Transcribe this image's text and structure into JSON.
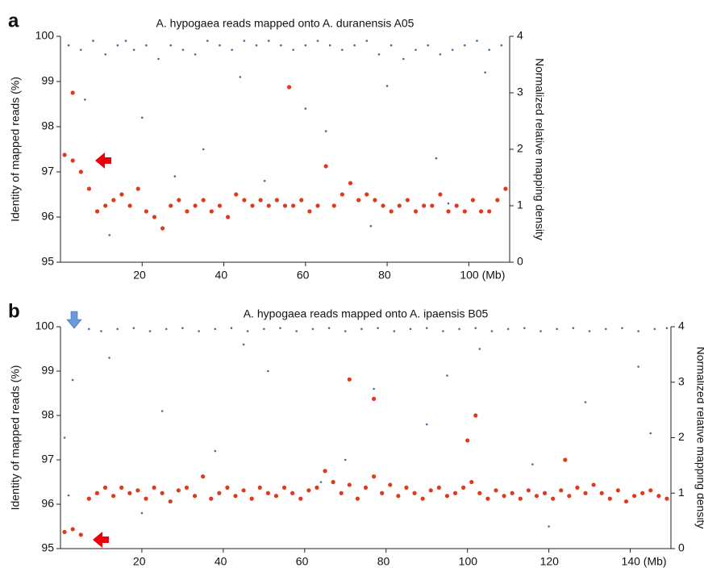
{
  "chart_data": [
    {
      "type": "scatter",
      "panel": "a",
      "title": "A. hypogaea reads mapped onto A. duranensis A05",
      "y_label": "Identity of mapped reads (%)",
      "y2_label": "Normalized relative mapping density",
      "xlim": [
        0,
        110
      ],
      "xticks": [
        20,
        40,
        60,
        80,
        {
          "value": 100,
          "label": "100 (Mb)"
        }
      ],
      "ylim": [
        95,
        100
      ],
      "yticks": [
        95,
        96,
        97,
        98,
        99,
        100
      ],
      "y2lim": [
        0,
        4
      ],
      "y2ticks": [
        0,
        1,
        2,
        3,
        4
      ],
      "series": [
        {
          "color": "#4a6a9a",
          "axis": "y",
          "x": [
            2,
            5,
            8,
            11,
            14,
            16,
            18,
            21,
            24,
            27,
            30,
            33,
            36,
            39,
            42,
            45,
            48,
            51,
            54,
            57,
            60,
            63,
            66,
            69,
            72,
            75,
            78,
            81,
            84,
            87,
            90,
            93,
            96,
            99,
            102,
            105,
            108,
            6,
            20,
            35,
            50,
            65,
            80,
            95,
            12,
            28,
            44,
            60,
            76,
            92,
            104
          ],
          "values": [
            99.8,
            99.7,
            99.9,
            99.6,
            99.8,
            99.9,
            99.7,
            99.8,
            99.5,
            99.8,
            99.7,
            99.6,
            99.9,
            99.8,
            99.7,
            99.9,
            99.8,
            99.9,
            99.8,
            99.7,
            99.8,
            99.9,
            99.8,
            99.7,
            99.8,
            99.9,
            99.6,
            99.8,
            99.5,
            99.7,
            99.8,
            99.6,
            99.7,
            99.8,
            99.9,
            99.7,
            99.8,
            98.6,
            98.2,
            97.5,
            96.8,
            97.9,
            98.9,
            96.3,
            95.6,
            96.9,
            99.1,
            98.4,
            95.8,
            97.3,
            99.2
          ]
        },
        {
          "color": "#e03a1e",
          "axis": "y2",
          "x": [
            1,
            3,
            5,
            7,
            9,
            11,
            13,
            15,
            17,
            19,
            21,
            23,
            25,
            27,
            29,
            31,
            33,
            35,
            37,
            39,
            41,
            43,
            45,
            47,
            49,
            51,
            53,
            55,
            57,
            59,
            61,
            63,
            65,
            67,
            69,
            71,
            73,
            75,
            77,
            79,
            81,
            83,
            85,
            87,
            89,
            91,
            93,
            95,
            97,
            99,
            101,
            103,
            105,
            107,
            109,
            3,
            56
          ],
          "values": [
            1.9,
            1.8,
            1.6,
            1.3,
            0.9,
            1.0,
            1.1,
            1.2,
            1.0,
            1.3,
            0.9,
            0.8,
            0.6,
            1.0,
            1.1,
            0.9,
            1.0,
            1.1,
            0.9,
            1.0,
            0.8,
            1.2,
            1.1,
            1.0,
            1.1,
            1.0,
            1.1,
            1.0,
            1.0,
            1.1,
            0.9,
            1.0,
            1.7,
            1.0,
            1.2,
            1.4,
            1.1,
            1.2,
            1.1,
            1.0,
            0.9,
            1.0,
            1.1,
            0.9,
            1.0,
            1.0,
            1.2,
            0.9,
            1.0,
            0.9,
            1.1,
            0.9,
            0.9,
            1.1,
            1.3,
            3.0,
            3.1
          ]
        }
      ]
    },
    {
      "type": "scatter",
      "panel": "b",
      "title": "A. hypogaea reads mapped onto A. ipaensis B05",
      "y_label": "Identity of mapped reads (%)",
      "y2_label": "Normalized relative mapping density",
      "xlim": [
        0,
        150
      ],
      "xticks": [
        20,
        40,
        60,
        80,
        100,
        120,
        {
          "value": 140,
          "label": "140 (Mb)"
        }
      ],
      "ylim": [
        95,
        100
      ],
      "yticks": [
        95,
        96,
        97,
        98,
        99,
        100
      ],
      "y2lim": [
        0,
        4
      ],
      "y2ticks": [
        0,
        1,
        2,
        3,
        4
      ],
      "series": [
        {
          "color": "#4a6a9a",
          "axis": "y",
          "x": [
            1,
            2,
            3,
            7,
            10,
            14,
            18,
            22,
            26,
            30,
            34,
            38,
            42,
            46,
            50,
            54,
            58,
            62,
            66,
            70,
            74,
            78,
            82,
            86,
            90,
            94,
            98,
            102,
            106,
            110,
            114,
            118,
            122,
            126,
            130,
            134,
            138,
            142,
            146,
            149,
            12,
            25,
            38,
            51,
            64,
            77,
            90,
            103,
            116,
            129,
            142,
            20,
            45,
            70,
            95,
            120,
            145
          ],
          "values": [
            97.5,
            96.2,
            98.8,
            99.95,
            99.9,
            99.95,
            99.97,
            99.9,
            99.95,
            99.97,
            99.9,
            99.95,
            99.97,
            99.9,
            99.95,
            99.97,
            99.9,
            99.95,
            99.97,
            99.9,
            99.95,
            99.97,
            99.9,
            99.95,
            99.97,
            99.9,
            99.95,
            99.97,
            99.9,
            99.95,
            99.97,
            99.9,
            99.95,
            99.97,
            99.9,
            99.95,
            99.97,
            99.9,
            99.95,
            99.97,
            99.3,
            98.1,
            97.2,
            99.0,
            96.5,
            98.6,
            97.8,
            99.5,
            96.9,
            98.3,
            99.1,
            95.8,
            99.6,
            97.0,
            98.9,
            95.5,
            97.6
          ]
        },
        {
          "color": "#e03a1e",
          "axis": "y2",
          "x": [
            1,
            3,
            5,
            7,
            9,
            11,
            13,
            15,
            17,
            19,
            21,
            23,
            25,
            27,
            29,
            31,
            33,
            35,
            37,
            39,
            41,
            43,
            45,
            47,
            49,
            51,
            53,
            55,
            57,
            59,
            61,
            63,
            65,
            67,
            69,
            71,
            73,
            75,
            77,
            79,
            81,
            83,
            85,
            87,
            89,
            91,
            93,
            95,
            97,
            99,
            101,
            103,
            105,
            107,
            109,
            111,
            113,
            115,
            117,
            119,
            121,
            123,
            125,
            127,
            129,
            131,
            133,
            135,
            137,
            139,
            141,
            143,
            145,
            147,
            149,
            71,
            77,
            100,
            102,
            124
          ],
          "values": [
            0.3,
            0.35,
            0.25,
            0.9,
            1.0,
            1.1,
            0.95,
            1.1,
            1.0,
            1.05,
            0.9,
            1.1,
            1.0,
            0.85,
            1.05,
            1.1,
            0.95,
            1.3,
            0.9,
            1.0,
            1.1,
            0.95,
            1.05,
            0.9,
            1.1,
            1.0,
            0.95,
            1.1,
            1.0,
            0.9,
            1.05,
            1.1,
            1.4,
            1.2,
            1.0,
            1.15,
            0.9,
            1.1,
            1.3,
            1.0,
            1.15,
            0.95,
            1.1,
            1.0,
            0.9,
            1.05,
            1.1,
            0.95,
            1.0,
            1.1,
            1.2,
            1.0,
            0.9,
            1.05,
            0.95,
            1.0,
            0.9,
            1.05,
            0.95,
            1.0,
            0.9,
            1.05,
            0.95,
            1.1,
            1.0,
            1.15,
            1.0,
            0.9,
            1.05,
            0.85,
            0.95,
            1.0,
            1.05,
            0.95,
            0.9,
            3.05,
            2.7,
            1.95,
            2.4,
            1.6
          ]
        }
      ]
    }
  ]
}
